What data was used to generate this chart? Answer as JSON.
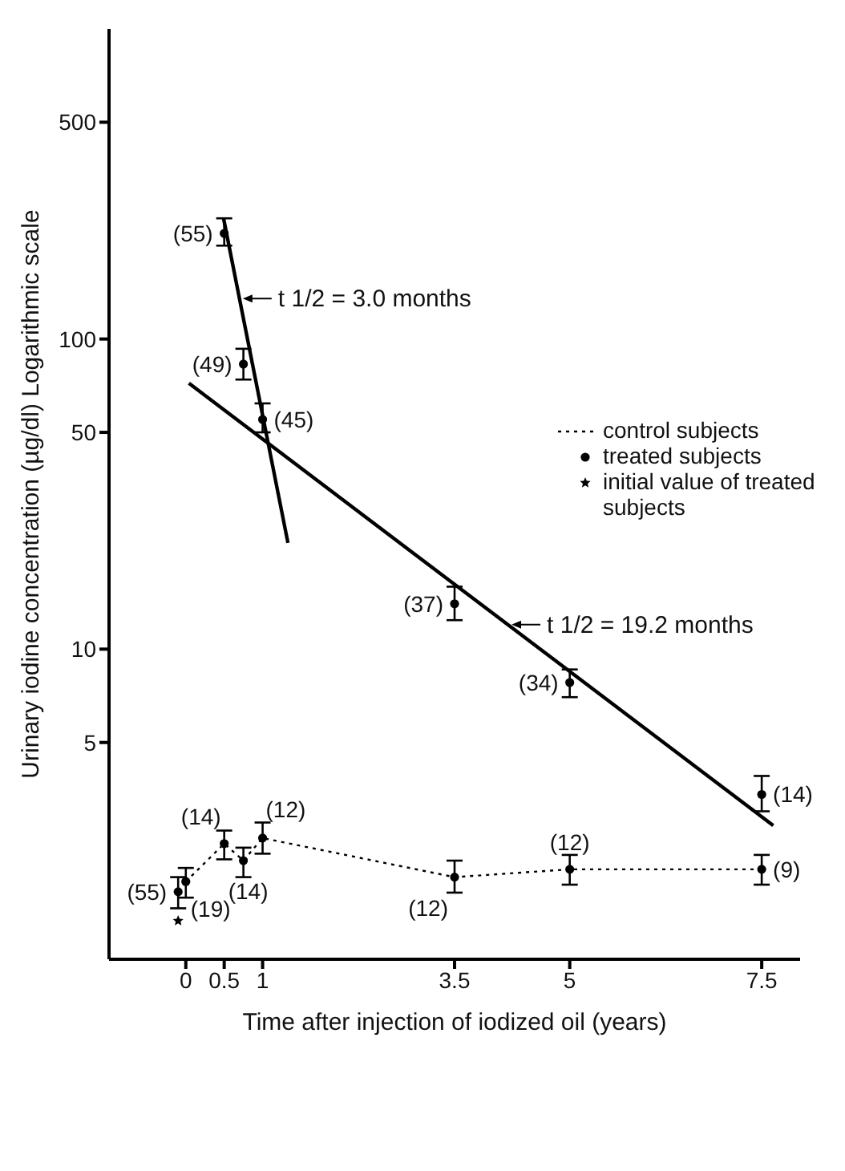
{
  "chart_data": {
    "type": "scatter",
    "xlabel": "Time after injection of iodized oil (years)",
    "ylabel": "Urinary iodine concentration (µg/dl) Logarithmic scale",
    "log": "y",
    "xlim": [
      -1,
      8
    ],
    "xticks": [
      0,
      0.5,
      1,
      3.5,
      5,
      7.5
    ],
    "ylim": [
      1,
      1000
    ],
    "yticks": [
      5,
      10,
      50,
      100,
      500
    ],
    "legend": "right",
    "series": [
      {
        "name": "control subjects",
        "type": "line",
        "color": "#000000",
        "line_style": "dotted",
        "marker": "circle",
        "x": [
          0,
          0.5,
          0.75,
          1,
          3.5,
          5,
          7.5
        ],
        "values": [
          1.78,
          2.36,
          2.08,
          2.46,
          1.84,
          1.95,
          1.95
        ],
        "errors": [
          [
            1.58,
            1.97
          ],
          [
            2.1,
            2.6
          ],
          [
            1.84,
            2.29
          ],
          [
            2.19,
            2.76
          ],
          [
            1.64,
            2.08
          ],
          [
            1.74,
            2.17
          ],
          [
            1.74,
            2.17
          ]
        ]
      },
      {
        "name": "treated subjects",
        "color": "#000000",
        "marker": "circle",
        "x": [
          -0.1,
          0.5,
          0.75,
          1,
          3.5,
          5,
          7.5
        ],
        "values": [
          1.65,
          219,
          83,
          55,
          14,
          7.8,
          3.4
        ],
        "errors": [
          [
            1.46,
            1.84
          ],
          [
            200,
            245
          ],
          [
            74,
            93
          ],
          [
            50,
            62
          ],
          [
            12.4,
            15.9
          ],
          [
            7,
            8.6
          ],
          [
            3,
            3.9
          ]
        ]
      },
      {
        "name": "initial value of treated subjects",
        "color": "#000000",
        "marker": "star",
        "x": [
          -0.1
        ],
        "values": [
          1.33
        ]
      },
      {
        "type": "line",
        "color": "#000000",
        "line_style": "solid",
        "marker": "none",
        "x": [
          0.49,
          1.33
        ],
        "values": [
          246,
          22
        ]
      },
      {
        "type": "line",
        "color": "#000000",
        "line_style": "solid",
        "marker": "none",
        "x": [
          0.04,
          7.65
        ],
        "values": [
          72,
          2.7
        ]
      }
    ],
    "annotations": [
      {
        "text": "t 1/2 = 3.0 months",
        "x": 0.7,
        "y": 135
      },
      {
        "text": "t 1/2 = 19.2 months",
        "x": 4.2,
        "y": 12
      },
      {
        "text": "(19)",
        "x": 0,
        "y": 1.78
      },
      {
        "text": "(14)",
        "x": 0.5,
        "y": 2.36
      },
      {
        "text": "(14)",
        "x": 0.75,
        "y": 2.08
      },
      {
        "text": "(12)",
        "x": 1,
        "y": 2.46
      },
      {
        "text": "(12)",
        "x": 3.5,
        "y": 1.84
      },
      {
        "text": "(12)",
        "x": 5,
        "y": 1.95
      },
      {
        "text": "(9)",
        "x": 7.5,
        "y": 1.95
      },
      {
        "text": "(55)",
        "x": -0.1,
        "y": 1.65
      },
      {
        "text": "(55)",
        "x": 0.5,
        "y": 219
      },
      {
        "text": "(49)",
        "x": 0.75,
        "y": 83
      },
      {
        "text": "(45)",
        "x": 1,
        "y": 55
      },
      {
        "text": "(37)",
        "x": 3.5,
        "y": 14
      },
      {
        "text": "(34)",
        "x": 5,
        "y": 7.8
      },
      {
        "text": "(14)",
        "x": 7.5,
        "y": 3.4
      }
    ]
  }
}
